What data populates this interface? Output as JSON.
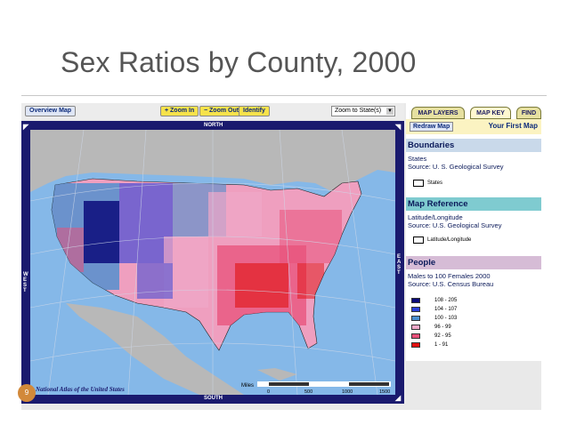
{
  "slide": {
    "title": "Sex Ratios by County, 2000",
    "page_number": "9"
  },
  "toolbar": {
    "overview_label": "Overview Map",
    "zoom_in_label": "+ Zoom In",
    "zoom_out_label": "− Zoom Out",
    "identify_label": "Identify",
    "zoom_select_value": "Zoom to State(s)"
  },
  "map": {
    "north_label": "NORTH",
    "south_label": "SOUTH",
    "east_label": "EAST",
    "west_label": "WEST",
    "credit": "National Atlas of the United States",
    "scale_unit": "Miles",
    "scale_ticks": [
      "0",
      "500",
      "1000",
      "1500"
    ]
  },
  "tabs": [
    {
      "label": "MAP LAYERS"
    },
    {
      "label": "MAP KEY"
    },
    {
      "label": "FIND"
    }
  ],
  "panel": {
    "redraw_label": "Redraw Map",
    "heading": "Your First Map",
    "sections": [
      {
        "title": "Boundaries",
        "line1": "States",
        "line2": "Source: U. S. Geological Survey",
        "symbol_label": "States",
        "color": "#c9d9ea"
      },
      {
        "title": "Map Reference",
        "line1": "Latitude/Longitude",
        "line2": "Source: U.S. Geological Survey",
        "symbol_label": "Latitude/Longitude",
        "color": "#7fcbd0"
      },
      {
        "title": "People",
        "line1": "Males to 100 Females 2000",
        "line2": "Source: U.S. Census Bureau",
        "color": "#d6bcd6"
      }
    ],
    "legend": [
      {
        "label": "108 - 205",
        "color": "#0a0a7a"
      },
      {
        "label": "104 - 107",
        "color": "#2a3fd8"
      },
      {
        "label": "100 - 103",
        "color": "#4a8fcf"
      },
      {
        "label": "96 - 99",
        "color": "#f0a8c8"
      },
      {
        "label": "92 - 95",
        "color": "#e8507a"
      },
      {
        "label": "1 - 91",
        "color": "#e01010"
      }
    ]
  },
  "colors": {
    "water": "#85b8e8",
    "land_other": "#b8b8b8",
    "frame": "#1a1a6e"
  }
}
